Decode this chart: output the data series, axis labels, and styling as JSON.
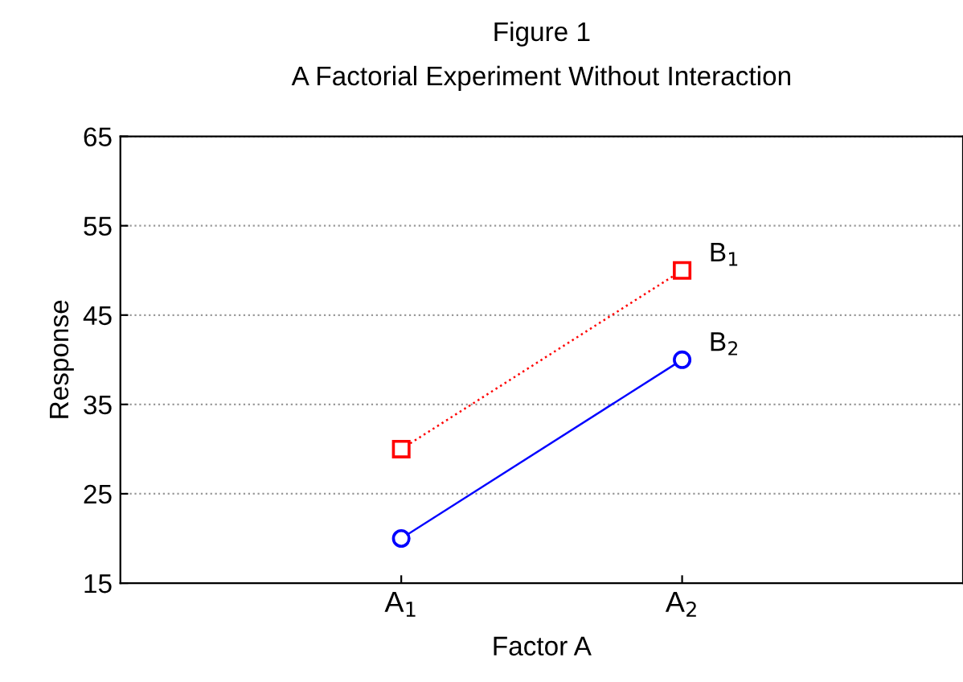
{
  "chart_data": {
    "type": "line",
    "title": "Figure 1",
    "subtitle": "A Factorial Experiment Without Interaction",
    "xlabel": "Factor A",
    "ylabel": "Response",
    "categories": [
      "A$_{1}$",
      "A$_{2}$"
    ],
    "series": [
      {
        "name": "B$_{1}$",
        "color": "#ff0000",
        "values": [
          30,
          50
        ],
        "marker": "square",
        "line_style": "dotted"
      },
      {
        "name": "B$_{2}$",
        "color": "#0000ff",
        "values": [
          20,
          40
        ],
        "marker": "circle",
        "line_style": "solid"
      }
    ],
    "ylim": [
      15,
      65
    ],
    "yticks": [
      15,
      25,
      35,
      45,
      55,
      65
    ],
    "grid": "y",
    "legend": false
  }
}
